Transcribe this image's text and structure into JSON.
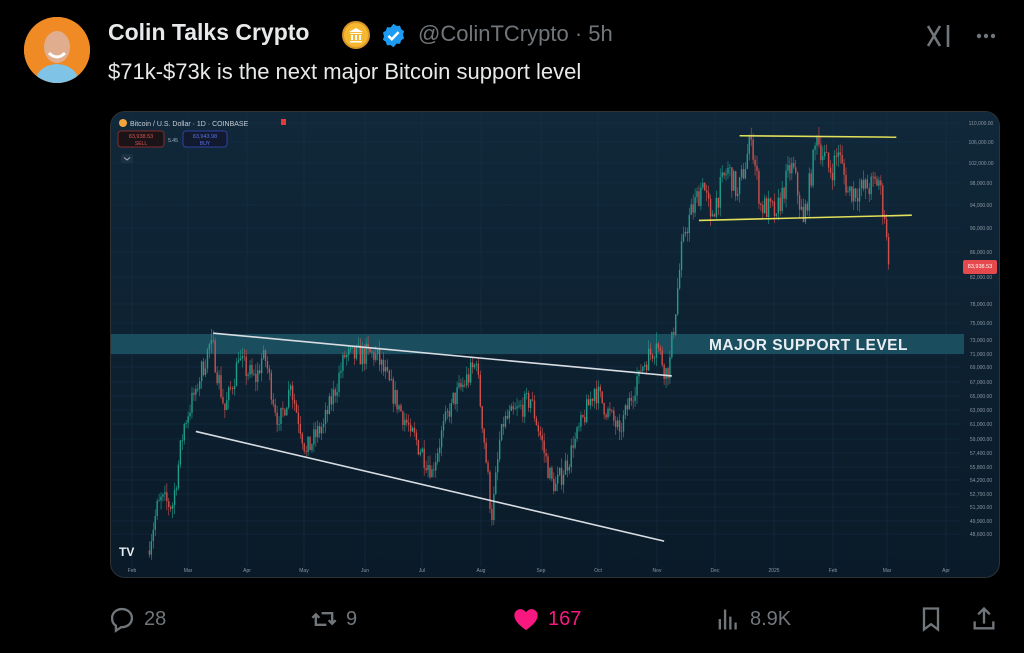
{
  "tweet": {
    "author_name": "Colin Talks Crypto",
    "handle": "@ColinTCrypto",
    "time": "5h",
    "handle_time": "@ColinTCrypto · 5h",
    "text": "$71k-$73k is the next major Bitcoin support level",
    "icons": {
      "affiliate_badge": "bank-icon",
      "verified": "verified-badge-icon",
      "grok": "grok-icon",
      "more": "more-dots-icon"
    }
  },
  "actions": {
    "replies": "28",
    "reposts": "9",
    "likes": "167",
    "views": "8.9K",
    "like_color": "#f91880",
    "icons": [
      "reply-icon",
      "repost-icon",
      "heart-icon",
      "views-icon",
      "bookmark-icon",
      "share-icon"
    ]
  },
  "chart_data": {
    "type": "candlestick",
    "title": "Bitcoin / U.S. Dollar · 1D · COINBASE",
    "sell_price": "83,938.53",
    "sell_label": "SELL",
    "buy_price": "83,943.98",
    "buy_label": "BUY",
    "spread": "5.45",
    "last_price": "83,938.53",
    "scale": "log",
    "x_ticks": [
      "Feb",
      "Mar",
      "Apr",
      "May",
      "Jun",
      "Jul",
      "Aug",
      "Sep",
      "Oct",
      "Nov",
      "Dec",
      "2025",
      "Feb",
      "Mar",
      "Apr"
    ],
    "y_ticks": [
      "110,000.00",
      "106,000.00",
      "102,000.00",
      "98,000.00",
      "94,000.00",
      "90,000.00",
      "86,000.00",
      "82,000.00",
      "78,000.00",
      "75,000.00",
      "73,000.00",
      "71,000.00",
      "69,000.00",
      "67,000.00",
      "65,000.00",
      "63,000.00",
      "61,000.00",
      "59,000.00",
      "57,400.00",
      "55,800.00",
      "54,200.00",
      "52,700.00",
      "51,300.00",
      "49,900.00",
      "48,600.00"
    ],
    "close_path": [
      [
        "2024-02-09",
        47000
      ],
      [
        "2024-02-15",
        52000
      ],
      [
        "2024-02-22",
        51500
      ],
      [
        "2024-02-28",
        61000
      ],
      [
        "2024-03-05",
        66000
      ],
      [
        "2024-03-13",
        73000
      ],
      [
        "2024-03-20",
        63000
      ],
      [
        "2024-03-27",
        70000
      ],
      [
        "2024-04-05",
        67000
      ],
      [
        "2024-04-09",
        71500
      ],
      [
        "2024-04-17",
        61000
      ],
      [
        "2024-04-23",
        66500
      ],
      [
        "2024-05-01",
        57500
      ],
      [
        "2024-05-10",
        61000
      ],
      [
        "2024-05-21",
        70500
      ],
      [
        "2024-06-06",
        71000
      ],
      [
        "2024-06-24",
        60000
      ],
      [
        "2024-07-05",
        55500
      ],
      [
        "2024-07-15",
        64000
      ],
      [
        "2024-07-28",
        69500
      ],
      [
        "2024-08-05",
        50000
      ],
      [
        "2024-08-10",
        61000
      ],
      [
        "2024-08-25",
        64500
      ],
      [
        "2024-09-06",
        53000
      ],
      [
        "2024-09-16",
        58000
      ],
      [
        "2024-09-27",
        66000
      ],
      [
        "2024-10-10",
        60000
      ],
      [
        "2024-10-20",
        68500
      ],
      [
        "2024-10-29",
        72500
      ],
      [
        "2024-11-04",
        67500
      ],
      [
        "2024-11-12",
        89000
      ],
      [
        "2024-11-22",
        98000
      ],
      [
        "2024-11-26",
        92000
      ],
      [
        "2024-12-05",
        101000
      ],
      [
        "2024-12-10",
        96000
      ],
      [
        "2024-12-17",
        106500
      ],
      [
        "2024-12-22",
        94000
      ],
      [
        "2024-12-30",
        92500
      ],
      [
        "2025-01-07",
        102000
      ],
      [
        "2025-01-13",
        91000
      ],
      [
        "2025-01-20",
        107000
      ],
      [
        "2025-01-27",
        100000
      ],
      [
        "2025-01-31",
        104000
      ],
      [
        "2025-02-05",
        96500
      ],
      [
        "2025-02-15",
        97000
      ],
      [
        "2025-02-21",
        98500
      ],
      [
        "2025-02-24",
        91500
      ],
      [
        "2025-02-26",
        84000
      ]
    ],
    "annotations": {
      "support_label": "MAJOR SUPPORT LEVEL",
      "support_range": [
        71000,
        73000
      ],
      "upper_trendline": [
        [
          "2024-03-14",
          73800
        ],
        [
          "2024-11-06",
          67800
        ]
      ],
      "lower_trendline": [
        [
          "2024-03-05",
          60000
        ],
        [
          "2024-11-02",
          47900
        ]
      ],
      "range_top": [
        [
          "2024-12-11",
          107300
        ],
        [
          "2025-03-02",
          107000
        ]
      ],
      "range_bottom": [
        [
          "2024-11-20",
          91300
        ],
        [
          "2025-03-10",
          92200
        ]
      ]
    },
    "colors": {
      "up": "#1f9e8c",
      "down": "#d0504c",
      "support_band": "#1d5566",
      "trend": "#d8dde3",
      "range": "#e3e05a",
      "background": "#0d2030"
    },
    "grid": true
  }
}
